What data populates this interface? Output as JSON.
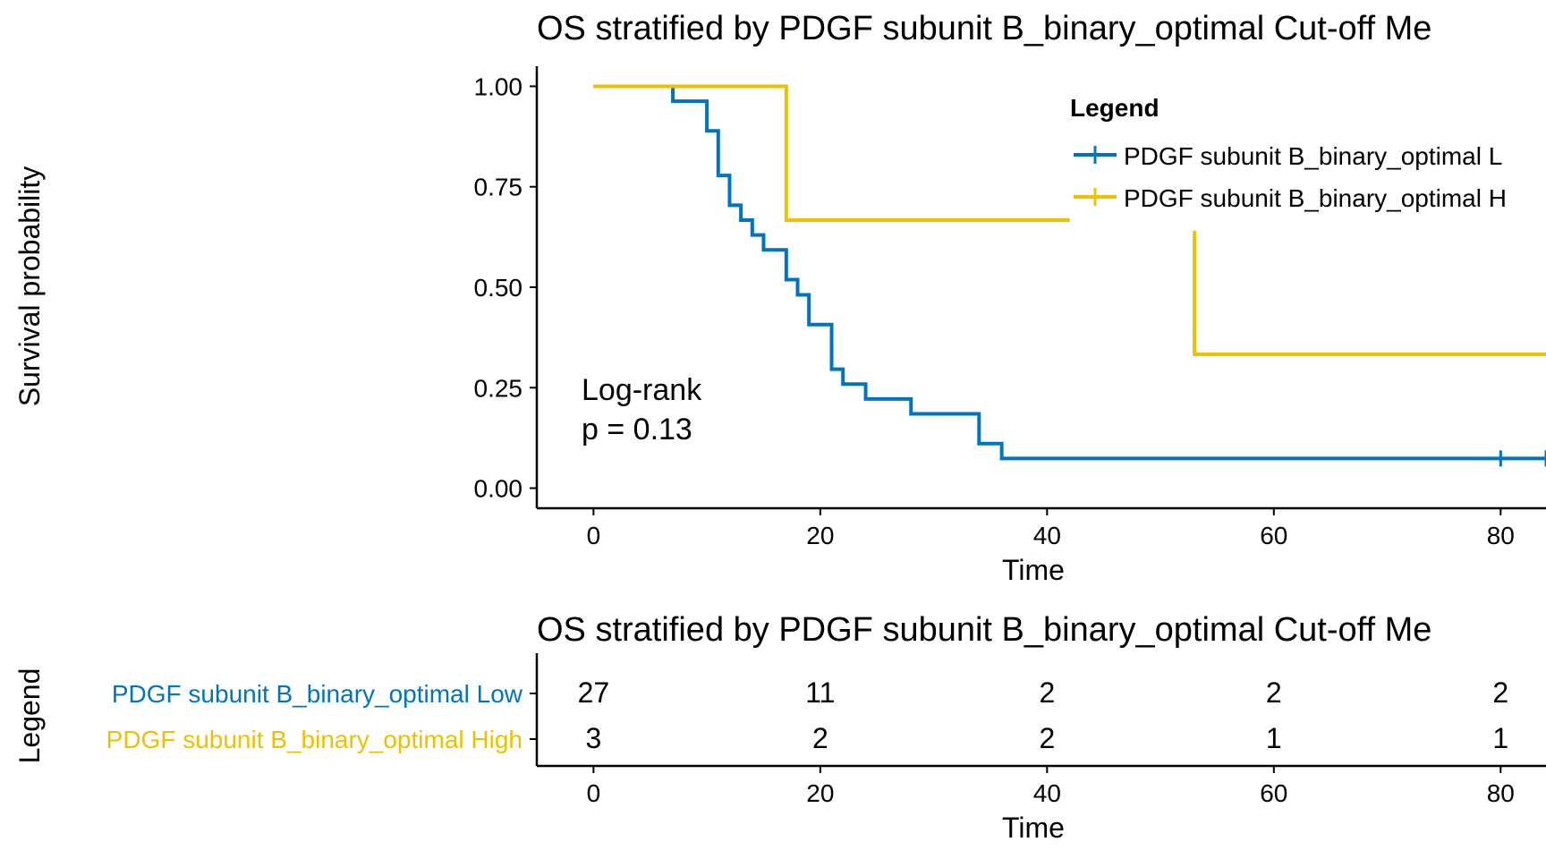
{
  "colors": {
    "low": "#0073C2",
    "high": "#EFC000",
    "axis": "#000000",
    "background": "#FFFFFF"
  },
  "chart_data": [
    {
      "type": "line",
      "subtype": "kaplan-meier-step",
      "title": "OS stratified by PDGF subunit B_binary_optimal Cut-off Me",
      "xlabel": "Time",
      "ylabel": "Survival probability",
      "xlim": [
        -5,
        84
      ],
      "ylim": [
        -0.05,
        1.05
      ],
      "xticks": [
        "0",
        "20",
        "40",
        "60",
        "80"
      ],
      "yticks": [
        "0.00",
        "0.25",
        "0.50",
        "0.75",
        "1.00"
      ],
      "grid": false,
      "legend": {
        "title": "Legend",
        "placement": "top-right",
        "entries": [
          "PDGF subunit B_binary_optimal L",
          "PDGF subunit B_binary_optimal H"
        ]
      },
      "annotation": [
        "Log-rank",
        "p = 0.13"
      ],
      "series": [
        {
          "key": "low",
          "color": "#0073C2",
          "steps": [
            [
              0,
              1.0
            ],
            [
              7,
              0.963
            ],
            [
              10,
              0.889
            ],
            [
              11,
              0.778
            ],
            [
              12,
              0.704
            ],
            [
              13,
              0.667
            ],
            [
              14,
              0.63
            ],
            [
              15,
              0.593
            ],
            [
              17,
              0.519
            ],
            [
              18,
              0.481
            ],
            [
              19,
              0.407
            ],
            [
              21,
              0.296
            ],
            [
              22,
              0.259
            ],
            [
              24,
              0.222
            ],
            [
              28,
              0.185
            ],
            [
              34,
              0.111
            ],
            [
              36,
              0.074
            ],
            [
              84,
              0.074
            ]
          ],
          "censor": [
            80,
            84
          ]
        },
        {
          "key": "high",
          "color": "#EFC000",
          "segments": [
            [
              [
                0,
                1.0
              ],
              [
                17,
                1.0
              ],
              [
                17,
                0.667
              ],
              [
                42,
                0.667
              ]
            ],
            [
              [
                53,
                0.64
              ],
              [
                53,
                0.333
              ],
              [
                84,
                0.333
              ]
            ]
          ],
          "censor": []
        }
      ]
    },
    {
      "type": "table",
      "subtype": "number-at-risk",
      "title": "OS stratified by PDGF subunit B_binary_optimal Cut-off Me",
      "xlabel": "Time",
      "ylabel": "Legend",
      "xlim": [
        -5,
        84
      ],
      "xticks": [
        "0",
        "20",
        "40",
        "60",
        "80"
      ],
      "time_points": [
        0,
        20,
        40,
        60,
        80
      ],
      "rows": [
        {
          "label": "PDGF subunit B_binary_optimal Low",
          "color": "#0073C2",
          "values": [
            27,
            11,
            2,
            2,
            2
          ]
        },
        {
          "label": "PDGF subunit B_binary_optimal High",
          "color": "#EFC000",
          "values": [
            3,
            2,
            2,
            1,
            1
          ]
        }
      ]
    }
  ]
}
